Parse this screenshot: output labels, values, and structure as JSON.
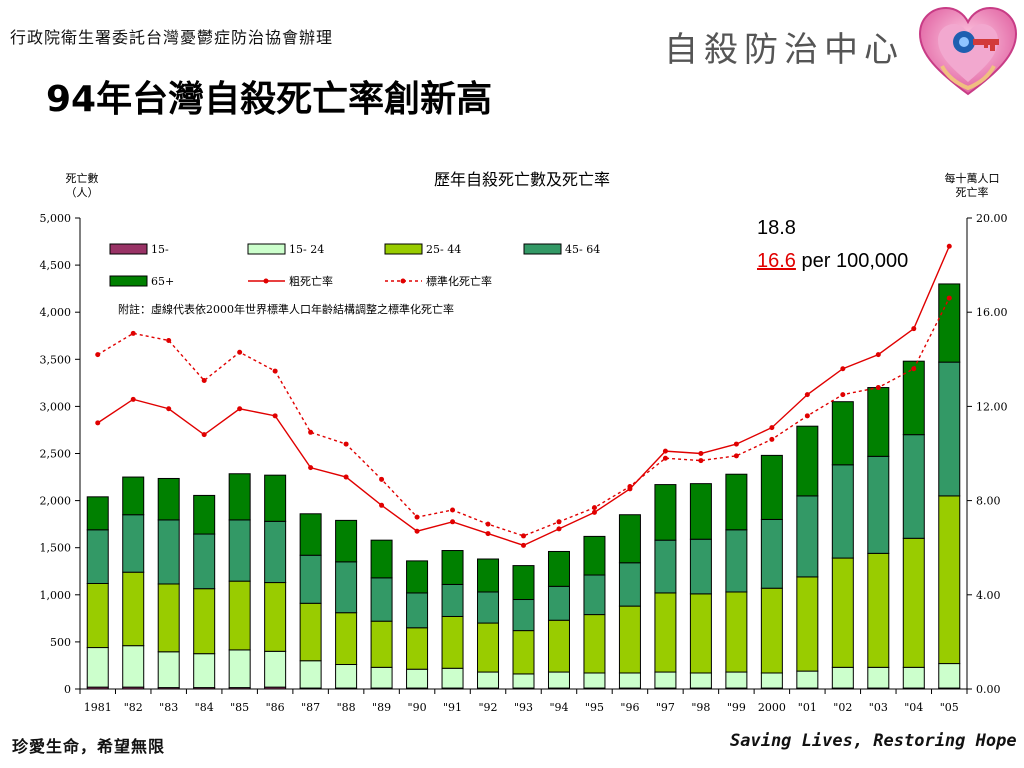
{
  "header": {
    "org_line": "行政院衛生署委託台灣憂鬱症防治協會辦理",
    "title": "94年台灣自殺死亡率創新高",
    "center_name": "自殺防治中心"
  },
  "footer": {
    "left_slogan": "珍愛生命，希望無限",
    "right_slogan": "Saving Lives, Restoring Hope"
  },
  "callout": {
    "crude_value": "18.8",
    "std_value": "16.6",
    "std_suffix": " per 100,000"
  },
  "colors": {
    "15-": "#993366",
    "15-24": "#ccffcc",
    "25-44": "#99cc00",
    "45-64": "#339966",
    "65+": "#008000",
    "line": "#e00000",
    "callout_red": "#e00000"
  },
  "chart_data": {
    "type": "bar",
    "stacked": true,
    "title": "歷年自殺死亡數及死亡率",
    "ylabel_left": [
      "死亡數",
      "（人）"
    ],
    "ylabel_right": [
      "每十萬人口",
      "死亡率"
    ],
    "note": "附註：虛線代表依2000年世界標準人口年齡結構調整之標準化死亡率",
    "categories": [
      "1981",
      "\"82",
      "\"83",
      "\"84",
      "\"85",
      "\"86",
      "\"87",
      "\"88",
      "\"89",
      "\"90",
      "\"91",
      "\"92",
      "\"93",
      "\"94",
      "\"95",
      "\"96",
      "\"97",
      "\"98",
      "\"99",
      "2000",
      "\"01",
      "\"02",
      "\"03",
      "\"04",
      "\"05"
    ],
    "ylim_left": [
      0,
      5000
    ],
    "yticks_left": [
      "0",
      "500",
      "1,000",
      "1,500",
      "2,000",
      "2,500",
      "3,000",
      "3,500",
      "4,000",
      "4,500",
      "5,000"
    ],
    "ylim_right": [
      0,
      20
    ],
    "yticks_right": [
      "0.00",
      "4.00",
      "8.00",
      "12.00",
      "16.00",
      "20.00"
    ],
    "series": [
      {
        "name": "15-",
        "key": "15-",
        "values": [
          20,
          20,
          15,
          15,
          15,
          20,
          10,
          10,
          10,
          10,
          10,
          10,
          10,
          10,
          10,
          10,
          10,
          10,
          10,
          10,
          10,
          10,
          10,
          10,
          10
        ]
      },
      {
        "name": "15- 24",
        "key": "15-24",
        "values": [
          420,
          440,
          380,
          360,
          400,
          380,
          290,
          250,
          220,
          200,
          210,
          170,
          150,
          170,
          160,
          160,
          170,
          160,
          170,
          160,
          180,
          220,
          220,
          220,
          260
        ]
      },
      {
        "name": "25- 44",
        "key": "25-44",
        "values": [
          680,
          780,
          720,
          690,
          730,
          730,
          610,
          550,
          490,
          440,
          550,
          520,
          460,
          550,
          620,
          710,
          840,
          840,
          850,
          900,
          1000,
          1160,
          1210,
          1370,
          1780
        ]
      },
      {
        "name": "45- 64",
        "key": "45-64",
        "values": [
          570,
          610,
          680,
          580,
          650,
          650,
          510,
          540,
          460,
          370,
          340,
          330,
          330,
          360,
          420,
          460,
          560,
          580,
          660,
          730,
          860,
          990,
          1030,
          1100,
          1420
        ]
      },
      {
        "name": "65+",
        "key": "65+",
        "values": [
          350,
          400,
          440,
          410,
          490,
          490,
          440,
          440,
          400,
          340,
          360,
          350,
          360,
          370,
          410,
          510,
          590,
          590,
          590,
          680,
          740,
          670,
          730,
          780,
          830
        ]
      }
    ],
    "lines": [
      {
        "name": "粗死亡率",
        "style": "solid",
        "values": [
          11.3,
          12.3,
          11.9,
          10.8,
          11.9,
          11.6,
          9.4,
          9.0,
          7.8,
          6.7,
          7.1,
          6.6,
          6.1,
          6.8,
          7.5,
          8.5,
          10.1,
          10.0,
          10.4,
          11.1,
          12.5,
          13.6,
          14.2,
          15.3,
          18.8
        ]
      },
      {
        "name": "標準化死亡率",
        "style": "dashed",
        "values": [
          14.2,
          15.1,
          14.8,
          13.1,
          14.3,
          13.5,
          10.9,
          10.4,
          8.9,
          7.3,
          7.6,
          7.0,
          6.5,
          7.1,
          7.7,
          8.6,
          9.8,
          9.7,
          9.9,
          10.6,
          11.6,
          12.5,
          12.8,
          13.6,
          16.6
        ]
      }
    ],
    "grid": false,
    "legend": "inside-top-left"
  }
}
